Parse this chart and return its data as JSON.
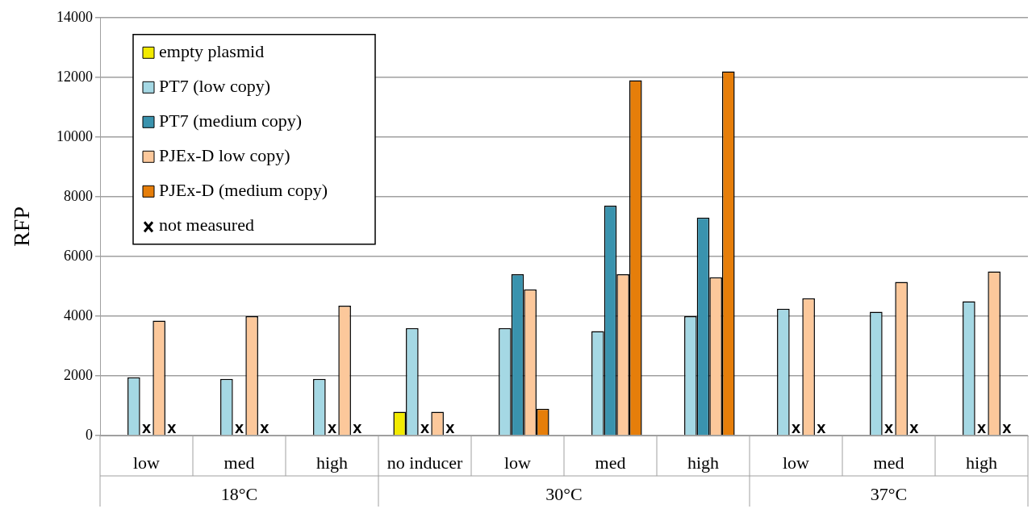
{
  "chart_data": {
    "type": "bar",
    "ylabel": "RFP",
    "categories": [
      "low",
      "med",
      "high",
      "no inducer",
      "low",
      "med",
      "high",
      "low",
      "med",
      "high"
    ],
    "annotations": [
      "18°C",
      "30°C",
      "37°C"
    ],
    "series": [
      {
        "name": "empty plasmid",
        "color": "#f2ea00",
        "values": [
          null,
          null,
          null,
          800,
          null,
          null,
          null,
          null,
          null,
          null
        ]
      },
      {
        "name": "PT7 (low copy)",
        "color": "#a5d8e4",
        "values": [
          1950,
          1900,
          1900,
          3600,
          3600,
          3500,
          4000,
          4250,
          4150,
          4500
        ]
      },
      {
        "name": "PT7 (medium copy)",
        "color": "#3a93ae",
        "values": [
          null,
          null,
          null,
          null,
          5400,
          7700,
          7300,
          null,
          null,
          null
        ],
        "value_labels": [
          "x",
          "x",
          "x",
          "x",
          null,
          null,
          null,
          "x",
          "x",
          "x"
        ]
      },
      {
        "name": "PJEx-D low copy)",
        "color": "#fcc89b",
        "values": [
          3850,
          4000,
          4350,
          800,
          4900,
          5400,
          5300,
          4600,
          5150,
          5500
        ]
      },
      {
        "name": "PJEx-D (medium copy)",
        "color": "#e67e0a",
        "values": [
          null,
          null,
          null,
          null,
          900,
          11900,
          12200,
          null,
          null,
          null
        ],
        "value_labels": [
          "x",
          "x",
          "x",
          "x",
          null,
          null,
          null,
          "x",
          "x",
          "x"
        ]
      },
      {
        "name": "not measured",
        "type": "scatter",
        "marker": "cross",
        "color": "#000000",
        "values": [
          null,
          null,
          null,
          null,
          null,
          null,
          null,
          null,
          null,
          null
        ]
      }
    ],
    "ylim": [
      0,
      14000
    ],
    "yticks": [
      0,
      2000,
      4000,
      6000,
      8000,
      10000,
      12000,
      14000
    ],
    "grid": "y",
    "legend": "top left"
  }
}
